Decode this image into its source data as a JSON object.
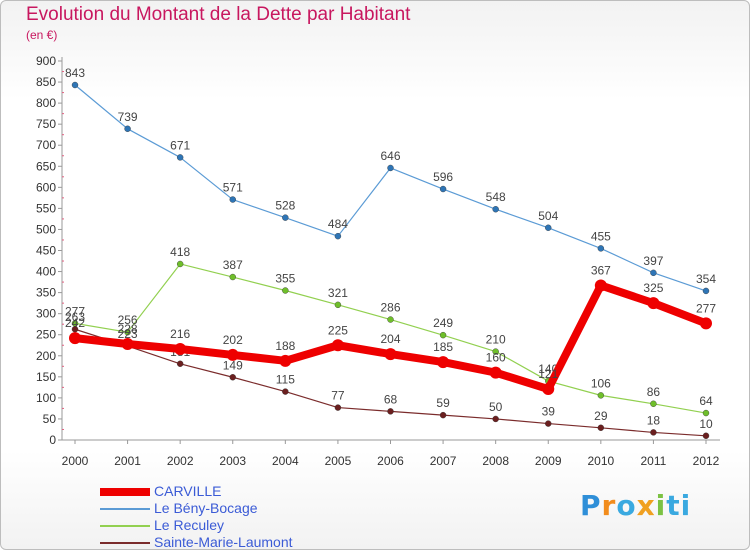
{
  "header": {
    "title": "Evolution du Montant de la Dette par Habitant",
    "unit": "(en €)"
  },
  "brand": {
    "name": "Proxiti",
    "colors": [
      "#2f8fd8",
      "#f28c1c",
      "#3aa9e0",
      "#f0a020",
      "#7cc243",
      "#3aa9e0"
    ]
  },
  "chart_data": {
    "type": "line",
    "title": "Evolution du Montant de la Dette par Habitant",
    "subtitle": "(en €)",
    "x": [
      "2000",
      "2001",
      "2002",
      "2003",
      "2004",
      "2005",
      "2006",
      "2007",
      "2008",
      "2009",
      "2010",
      "2011",
      "2012"
    ],
    "ylim": [
      0,
      900
    ],
    "yticks": [
      0,
      50,
      100,
      150,
      200,
      250,
      300,
      350,
      400,
      450,
      500,
      550,
      600,
      650,
      700,
      750,
      800,
      850,
      900
    ],
    "grid": false,
    "legend_position": "bottom-left",
    "series": [
      {
        "name": "Le Bény-Bocage",
        "color": "#5b9bd5",
        "marker": "#2e75b6",
        "values": [
          843,
          739,
          671,
          571,
          528,
          484,
          646,
          596,
          548,
          504,
          455,
          397,
          354
        ]
      },
      {
        "name": "Le Reculey",
        "color": "#92d050",
        "marker": "#6fbf2a",
        "values": [
          277,
          256,
          418,
          387,
          355,
          321,
          286,
          249,
          210,
          140,
          106,
          86,
          64
        ]
      },
      {
        "name": "Sainte-Marie-Laumont",
        "color": "#7b2c2c",
        "marker": "#6b1f1f",
        "values": [
          263,
          223,
          181,
          149,
          115,
          77,
          68,
          59,
          50,
          39,
          29,
          18,
          10
        ]
      },
      {
        "name": "CARVILLE",
        "color": "#ee0000",
        "marker": "#ee0000",
        "thick": true,
        "values": [
          242,
          228,
          216,
          202,
          188,
          225,
          204,
          185,
          160,
          121,
          367,
          325,
          277
        ]
      }
    ]
  }
}
